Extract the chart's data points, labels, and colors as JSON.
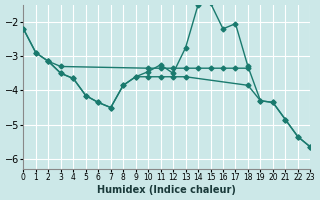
{
  "bg_color": "#cce8e8",
  "grid_color": "#b8dede",
  "line_color": "#1a7a6e",
  "xlabel": "Humidex (Indice chaleur)",
  "xlim": [
    0,
    23
  ],
  "ylim": [
    -6.3,
    -1.5
  ],
  "yticks": [
    -6,
    -5,
    -4,
    -3,
    -2
  ],
  "xticks": [
    0,
    1,
    2,
    3,
    4,
    5,
    6,
    7,
    8,
    9,
    10,
    11,
    12,
    13,
    14,
    15,
    16,
    17,
    18,
    19,
    20,
    21,
    22,
    23
  ],
  "curve_peak_x": [
    0,
    1,
    2,
    3,
    4,
    5,
    6,
    7,
    8,
    9,
    10,
    11,
    12,
    13,
    14,
    15,
    16,
    17,
    18,
    19,
    20,
    21,
    22,
    23
  ],
  "curve_peak_y": [
    -2.2,
    -2.9,
    -3.15,
    -3.5,
    -3.65,
    -4.15,
    -4.35,
    -4.5,
    -3.85,
    -3.6,
    -3.45,
    -3.25,
    -3.5,
    -2.75,
    -1.5,
    -1.45,
    -2.2,
    -2.05,
    -3.3,
    -4.3,
    -4.35,
    -4.85,
    -5.35,
    -5.65
  ],
  "curve_flat_x": [
    0,
    1,
    2,
    3,
    10,
    11,
    12,
    13,
    14,
    15,
    16,
    17,
    18
  ],
  "curve_flat_y": [
    -2.2,
    -2.9,
    -3.15,
    -3.3,
    -3.35,
    -3.35,
    -3.35,
    -3.35,
    -3.35,
    -3.35,
    -3.35,
    -3.35,
    -3.35
  ],
  "curve_diag_x": [
    2,
    3,
    4,
    5,
    6,
    7,
    8,
    9,
    10,
    11,
    12,
    13,
    18,
    19,
    20,
    21,
    22,
    23
  ],
  "curve_diag_y": [
    -3.15,
    -3.5,
    -3.65,
    -4.15,
    -4.35,
    -4.5,
    -3.85,
    -3.6,
    -3.6,
    -3.6,
    -3.6,
    -3.6,
    -3.85,
    -4.3,
    -4.35,
    -4.85,
    -5.35,
    -5.65
  ]
}
